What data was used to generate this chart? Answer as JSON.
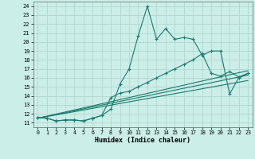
{
  "xlabel": "Humidex (Indice chaleur)",
  "bg_color": "#cceee8",
  "grid_color": "#b0d8d0",
  "line_color": "#1a7a6e",
  "xlim": [
    -0.5,
    23.5
  ],
  "ylim": [
    10.5,
    24.5
  ],
  "xticks": [
    0,
    1,
    2,
    3,
    4,
    5,
    6,
    7,
    8,
    9,
    10,
    11,
    12,
    13,
    14,
    15,
    16,
    17,
    18,
    19,
    20,
    21,
    22,
    23
  ],
  "yticks": [
    11,
    12,
    13,
    14,
    15,
    16,
    17,
    18,
    19,
    20,
    21,
    22,
    23,
    24
  ],
  "line1_x": [
    0,
    1,
    2,
    3,
    4,
    5,
    6,
    7,
    8,
    9,
    10,
    11,
    12,
    13,
    14,
    15,
    16,
    17,
    18,
    19,
    20,
    21,
    22,
    23
  ],
  "line1_y": [
    11.6,
    11.5,
    11.2,
    11.3,
    11.3,
    11.2,
    11.5,
    11.8,
    12.5,
    15.3,
    17.0,
    20.7,
    24.0,
    20.3,
    21.5,
    20.3,
    20.5,
    20.3,
    18.5,
    19.0,
    19.0,
    14.2,
    16.0,
    16.5
  ],
  "line2_x": [
    0,
    1,
    2,
    3,
    4,
    5,
    6,
    7,
    8,
    9,
    10,
    11,
    12,
    13,
    14,
    15,
    16,
    17,
    18,
    19,
    20,
    21,
    22,
    23
  ],
  "line2_y": [
    11.6,
    11.5,
    11.2,
    11.3,
    11.3,
    11.2,
    11.5,
    11.8,
    13.8,
    14.3,
    14.5,
    15.0,
    15.5,
    16.0,
    16.5,
    17.0,
    17.5,
    18.0,
    18.7,
    16.5,
    16.2,
    16.7,
    16.1,
    16.5
  ],
  "line3_x": [
    0,
    23
  ],
  "line3_y": [
    11.5,
    16.8
  ],
  "line4_x": [
    0,
    23
  ],
  "line4_y": [
    11.5,
    16.3
  ],
  "line5_x": [
    0,
    23
  ],
  "line5_y": [
    11.5,
    15.7
  ]
}
